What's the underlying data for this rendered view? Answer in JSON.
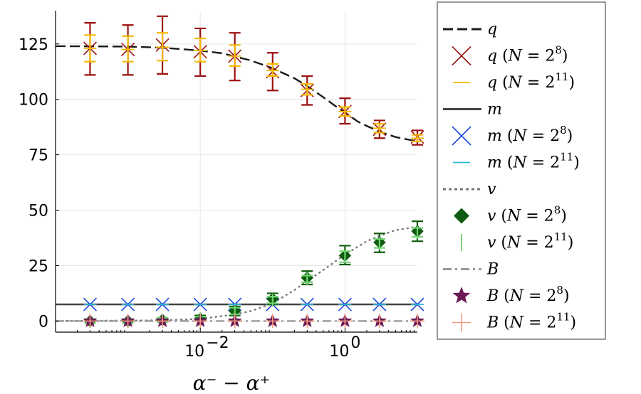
{
  "chart_data": {
    "type": "line",
    "xlabel": "α⁻ − α⁺",
    "ylabel": "",
    "xscale": "log10",
    "xlim": [
      0.0001,
      10
    ],
    "ylim": [
      -5,
      140
    ],
    "grid": true,
    "legend_position": "right, outside",
    "y_ticks": [
      {
        "value": 0,
        "label": "0"
      },
      {
        "value": 25,
        "label": "25"
      },
      {
        "value": 50,
        "label": "50"
      },
      {
        "value": 75,
        "label": "75"
      },
      {
        "value": 100,
        "label": "100"
      },
      {
        "value": 125,
        "label": "125"
      }
    ],
    "x_ticks": [
      {
        "value": 0.01,
        "base": "10",
        "exp": "−2"
      },
      {
        "value": 1,
        "base": "10",
        "exp": "0"
      }
    ],
    "x": [
      0.0003,
      0.001,
      0.003,
      0.01,
      0.03,
      0.1,
      0.3,
      1,
      3,
      10
    ],
    "curves": [
      {
        "name": "q",
        "style": "dashed",
        "color": "#1a1a1a",
        "x": [
          0.0001,
          0.001,
          0.003,
          0.01,
          0.02,
          0.05,
          0.1,
          0.2,
          0.3,
          0.5,
          0.7,
          1,
          1.5,
          2,
          3,
          5,
          10
        ],
        "y": [
          124,
          123.8,
          123.3,
          122,
          120.8,
          117.5,
          114,
          109.5,
          106,
          101,
          97.5,
          94,
          90,
          88,
          85.5,
          83,
          81
        ]
      },
      {
        "name": "m",
        "style": "solid",
        "color": "#444444",
        "x": [
          0.0001,
          10
        ],
        "y": [
          7.5,
          7.5
        ]
      },
      {
        "name": "v",
        "style": "dotted",
        "color": "#777777",
        "x": [
          0.0001,
          0.003,
          0.01,
          0.03,
          0.05,
          0.1,
          0.2,
          0.3,
          0.5,
          1,
          2,
          3,
          5,
          10
        ],
        "y": [
          0,
          0.3,
          1,
          3,
          4.5,
          8,
          14,
          18,
          23,
          30,
          36,
          38.5,
          41,
          42.5
        ]
      },
      {
        "name": "B",
        "style": "dashdot",
        "color": "#999999",
        "x": [
          0.0001,
          10
        ],
        "y": [
          0,
          0
        ]
      }
    ],
    "series": [
      {
        "name": "q (N=2^8)",
        "marker": "x",
        "color": "#9b1111",
        "values": [
          123,
          122.5,
          124.5,
          121.5,
          119.5,
          112.5,
          104,
          94.5,
          86.5,
          83
        ],
        "err_lower": [
          111,
          111,
          111.5,
          110.5,
          108.5,
          104,
          97.5,
          89,
          82.5,
          79.5
        ],
        "err_upper": [
          134.5,
          133.5,
          137.5,
          132,
          130,
          121,
          110.5,
          100.5,
          90.5,
          86
        ]
      },
      {
        "name": "q (N=2^11)",
        "marker": "hline",
        "color": "#f5b700",
        "values": [
          123,
          122.5,
          123.5,
          122,
          119.5,
          113,
          104.5,
          94.5,
          87,
          82.5
        ],
        "err_lower": [
          117,
          117,
          117.5,
          117,
          115,
          110.5,
          102,
          92.5,
          85,
          81
        ],
        "err_upper": [
          129,
          128.5,
          130,
          127.5,
          124.5,
          116,
          107,
          96.5,
          89,
          84
        ]
      },
      {
        "name": "m (N=2^8)",
        "marker": "x",
        "color": "#1a4adb",
        "values": [
          7.5,
          7.5,
          7.5,
          7.5,
          7.5,
          7.5,
          7.5,
          7.5,
          7.5,
          7.5
        ]
      },
      {
        "name": "m (N=2^11)",
        "marker": "hline",
        "color": "#2ab8d9",
        "values": [
          7.5,
          7.5,
          7.5,
          7.5,
          7.5,
          7.5,
          7.5,
          7.5,
          7.5,
          7.5
        ]
      },
      {
        "name": "v (N=2^8)",
        "marker": "diamond",
        "color": "#0f5b0f",
        "values": [
          0,
          0,
          0.5,
          1,
          4.5,
          10,
          19.5,
          29.5,
          35.5,
          40.5
        ],
        "err_lower": [
          0,
          0,
          0,
          0,
          2.5,
          7.5,
          16.5,
          25.5,
          31,
          36
        ],
        "err_upper": [
          0,
          0,
          1,
          2.5,
          6.5,
          12.5,
          22.5,
          34,
          39.5,
          45
        ]
      },
      {
        "name": "v (N=2^11)",
        "marker": "vline",
        "color": "#6fd36f",
        "values": [
          0,
          0,
          0.5,
          1,
          4.5,
          9.5,
          19,
          29,
          35,
          40
        ],
        "err_lower": [
          -1,
          -1,
          -0.5,
          0,
          3,
          8,
          17.5,
          26.5,
          33,
          38
        ],
        "err_upper": [
          1,
          1,
          1.5,
          2,
          6,
          11,
          20.5,
          31.5,
          37,
          42
        ]
      },
      {
        "name": "B (N=2^8)",
        "marker": "star",
        "color": "#6b1a55",
        "values": [
          0,
          0,
          0,
          0,
          0,
          0,
          0,
          0,
          0,
          0
        ]
      },
      {
        "name": "B (N=2^11)",
        "marker": "plus",
        "color": "#f59a80",
        "values": [
          0,
          0,
          0,
          0,
          0,
          0,
          0,
          0,
          0,
          0
        ]
      }
    ],
    "legend": [
      {
        "key": "q",
        "var": "q",
        "n": ""
      },
      {
        "key": "q (N=2^8)",
        "var": "q",
        "n": "8"
      },
      {
        "key": "q (N=2^11)",
        "var": "q",
        "n": "11"
      },
      {
        "key": "m",
        "var": "m",
        "n": ""
      },
      {
        "key": "m (N=2^8)",
        "var": "m",
        "n": "8"
      },
      {
        "key": "m (N=2^11)",
        "var": "m",
        "n": "11"
      },
      {
        "key": "v",
        "var": "v",
        "n": ""
      },
      {
        "key": "v (N=2^8)",
        "var": "v",
        "n": "8"
      },
      {
        "key": "v (N=2^11)",
        "var": "v",
        "n": "11"
      },
      {
        "key": "B",
        "var": "B",
        "n": ""
      },
      {
        "key": "B (N=2^8)",
        "var": "B",
        "n": "8"
      },
      {
        "key": "B (N=2^11)",
        "var": "B",
        "n": "11"
      }
    ],
    "legend_text": {
      "N": "N",
      "eq": " = ",
      "base": "2"
    }
  }
}
